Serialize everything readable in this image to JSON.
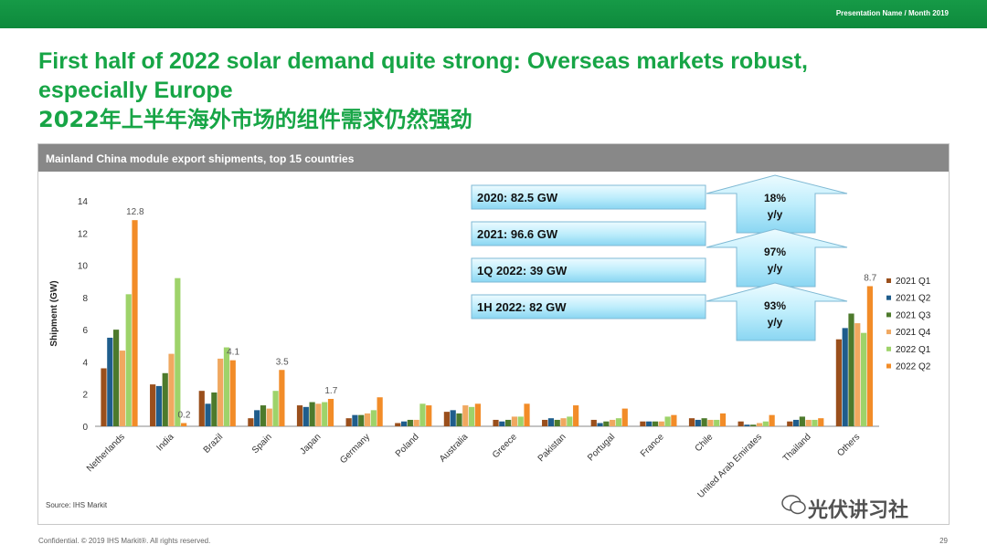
{
  "header": {
    "presentation_label": "Presentation Name / Month 2019"
  },
  "title": {
    "line1": "First half of 2022 solar demand quite strong: Overseas markets robust,",
    "line2": "especially Europe",
    "chinese": "2022年上半年海外市场的组件需求仍然强劲"
  },
  "chart_data": {
    "type": "bar",
    "title": "Mainland China module export shipments, top 15 countries",
    "ylabel": "Shipment (GW)",
    "xlabel": "",
    "ylim": [
      0,
      14
    ],
    "yticks": [
      0,
      2,
      4,
      6,
      8,
      10,
      12,
      14
    ],
    "categories": [
      "Netherlands",
      "India",
      "Brazil",
      "Spain",
      "Japan",
      "Germany",
      "Poland",
      "Australia",
      "Greece",
      "Pakistan",
      "Portugal",
      "France",
      "Chile",
      "United Arab Emirates",
      "Thailand",
      "Others"
    ],
    "series": [
      {
        "name": "2021 Q1",
        "color": "#9a4f1c",
        "values": [
          3.6,
          2.6,
          2.2,
          0.5,
          1.3,
          0.5,
          0.2,
          0.9,
          0.4,
          0.4,
          0.4,
          0.3,
          0.5,
          0.3,
          0.3,
          5.4
        ]
      },
      {
        "name": "2021 Q2",
        "color": "#1f5d8c",
        "values": [
          5.5,
          2.5,
          1.4,
          1.0,
          1.2,
          0.7,
          0.3,
          1.0,
          0.3,
          0.5,
          0.2,
          0.3,
          0.4,
          0.1,
          0.4,
          6.1
        ]
      },
      {
        "name": "2021 Q3",
        "color": "#4d7a2c",
        "values": [
          6.0,
          3.3,
          2.1,
          1.3,
          1.5,
          0.7,
          0.4,
          0.8,
          0.4,
          0.4,
          0.3,
          0.3,
          0.5,
          0.1,
          0.6,
          7.0
        ]
      },
      {
        "name": "2021 Q4",
        "color": "#f0a860",
        "values": [
          4.7,
          4.5,
          4.2,
          1.1,
          1.4,
          0.8,
          0.4,
          1.3,
          0.6,
          0.5,
          0.4,
          0.3,
          0.4,
          0.2,
          0.4,
          6.4
        ]
      },
      {
        "name": "2022 Q1",
        "color": "#9ed36a",
        "values": [
          8.2,
          9.2,
          4.9,
          2.2,
          1.5,
          1.0,
          1.4,
          1.2,
          0.6,
          0.6,
          0.5,
          0.6,
          0.4,
          0.3,
          0.4,
          5.8
        ]
      },
      {
        "name": "2022 Q2",
        "color": "#f28c28",
        "values": [
          12.8,
          0.2,
          4.1,
          3.5,
          1.7,
          1.8,
          1.3,
          1.4,
          1.4,
          1.3,
          1.1,
          0.7,
          0.8,
          0.7,
          0.5,
          8.7
        ]
      }
    ],
    "data_labels": [
      {
        "category": "Netherlands",
        "series": "2022 Q2",
        "text": "12.8"
      },
      {
        "category": "India",
        "series": "2022 Q2",
        "text": "0.2"
      },
      {
        "category": "Brazil",
        "series": "2022 Q2",
        "text": "4.1"
      },
      {
        "category": "Spain",
        "series": "2022 Q2",
        "text": "3.5"
      },
      {
        "category": "Japan",
        "series": "2022 Q2",
        "text": "1.7"
      },
      {
        "category": "Others",
        "series": "2022 Q2",
        "text": "8.7"
      }
    ],
    "annotation_boxes": [
      "2020: 82.5 GW",
      "2021: 96.6 GW",
      "1Q 2022: 39 GW",
      "1H 2022: 82 GW"
    ],
    "arrows": [
      {
        "line1": "18%",
        "line2": "y/y"
      },
      {
        "line1": "97%",
        "line2": "y/y"
      },
      {
        "line1": "93%",
        "line2": "y/y"
      }
    ],
    "legend_position": "right"
  },
  "source": "Source: IHS Markit",
  "footer": "Confidential. © 2019 IHS Markit®. All rights reserved.",
  "page_number": "29",
  "watermark": "光伏讲习社"
}
